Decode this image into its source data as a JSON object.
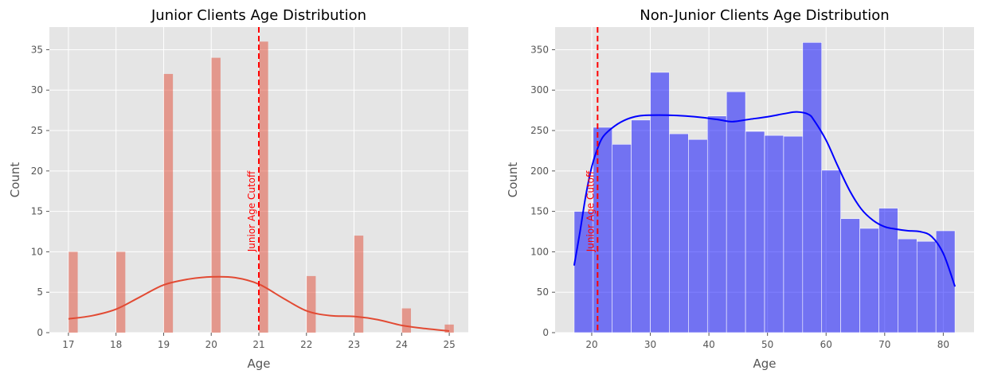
{
  "chart_data": [
    {
      "type": "bar",
      "title": "Junior Clients Age Distribution",
      "xlabel": "Age",
      "ylabel": "Count",
      "xlim": [
        16.6,
        25.4
      ],
      "ylim": [
        0,
        37.8
      ],
      "xticks": [
        17,
        18,
        19,
        20,
        21,
        22,
        23,
        24,
        25
      ],
      "yticks": [
        0,
        5,
        10,
        15,
        20,
        25,
        30,
        35
      ],
      "grid": true,
      "bar_color": "#e24a33",
      "bar_width": 0.19,
      "bars": [
        {
          "x": 17.1,
          "value": 10
        },
        {
          "x": 18.1,
          "value": 10
        },
        {
          "x": 19.1,
          "value": 32
        },
        {
          "x": 20.1,
          "value": 34
        },
        {
          "x": 21.1,
          "value": 36
        },
        {
          "x": 22.1,
          "value": 7
        },
        {
          "x": 23.1,
          "value": 12
        },
        {
          "x": 24.1,
          "value": 3
        },
        {
          "x": 25.0,
          "value": 1
        }
      ],
      "kde": {
        "color": "#e24a33",
        "points": [
          [
            17,
            1.7
          ],
          [
            17.5,
            2.1
          ],
          [
            18,
            2.9
          ],
          [
            18.5,
            4.4
          ],
          [
            19,
            5.9
          ],
          [
            19.5,
            6.6
          ],
          [
            20,
            6.9
          ],
          [
            20.5,
            6.8
          ],
          [
            21,
            6.0
          ],
          [
            21.5,
            4.3
          ],
          [
            22,
            2.7
          ],
          [
            22.5,
            2.1
          ],
          [
            23,
            2.0
          ],
          [
            23.5,
            1.6
          ],
          [
            24,
            0.9
          ],
          [
            24.5,
            0.5
          ],
          [
            25,
            0.2
          ]
        ]
      },
      "cutoff": {
        "x": 21,
        "label": "Junior Age Cutoff",
        "color": "#ff0000"
      }
    },
    {
      "type": "bar",
      "title": "Non-Junior Clients Age Distribution",
      "xlabel": "Age",
      "ylabel": "Count",
      "xlim": [
        13.75,
        85.25
      ],
      "ylim": [
        0,
        378
      ],
      "xticks": [
        20,
        30,
        40,
        50,
        60,
        70,
        80
      ],
      "yticks": [
        0,
        50,
        100,
        150,
        200,
        250,
        300,
        350
      ],
      "grid": true,
      "bar_color": "#0000ff",
      "bin_start": 17,
      "bin_width": 3.25,
      "values": [
        150,
        254,
        233,
        263,
        322,
        246,
        239,
        268,
        298,
        249,
        244,
        243,
        359,
        201,
        141,
        129,
        154,
        116,
        113,
        126
      ],
      "kde": {
        "color": "#0000ff",
        "points": [
          [
            17,
            83
          ],
          [
            18,
            125
          ],
          [
            19,
            170
          ],
          [
            20,
            205
          ],
          [
            21,
            228
          ],
          [
            22,
            243
          ],
          [
            24,
            256
          ],
          [
            26,
            264
          ],
          [
            28,
            268
          ],
          [
            30,
            269
          ],
          [
            33,
            269
          ],
          [
            36,
            268
          ],
          [
            39,
            266
          ],
          [
            42,
            263
          ],
          [
            44,
            261
          ],
          [
            47,
            264
          ],
          [
            50,
            267
          ],
          [
            53,
            271
          ],
          [
            55,
            273
          ],
          [
            57,
            270
          ],
          [
            58,
            262
          ],
          [
            60,
            238
          ],
          [
            62,
            206
          ],
          [
            64,
            176
          ],
          [
            66,
            153
          ],
          [
            68,
            139
          ],
          [
            70,
            131
          ],
          [
            72,
            128
          ],
          [
            74,
            126
          ],
          [
            76,
            125
          ],
          [
            78,
            119
          ],
          [
            80,
            98
          ],
          [
            82,
            57
          ]
        ]
      },
      "cutoff": {
        "x": 21,
        "label": "Junior Age Cutoff",
        "color": "#ff0000"
      }
    }
  ]
}
